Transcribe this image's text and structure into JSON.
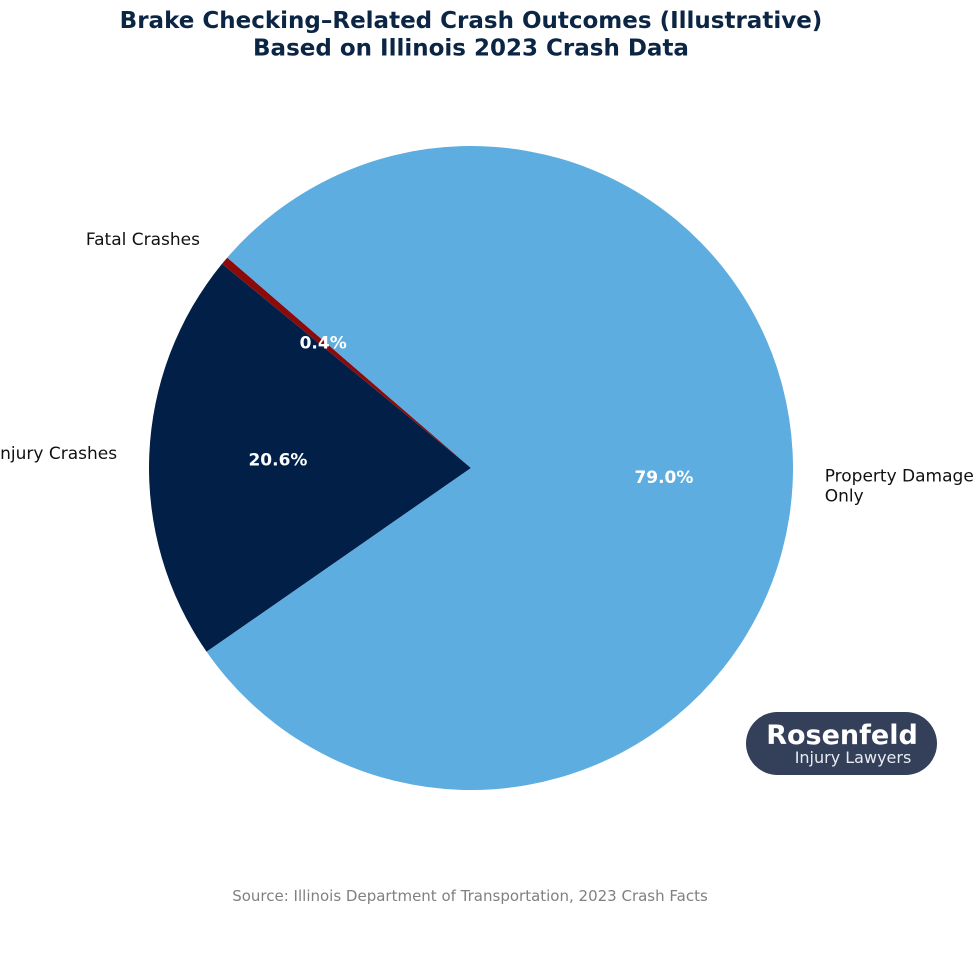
{
  "chart_data": {
    "type": "pie",
    "title": "Brake Checking–Related Crash Outcomes (Illustrative)\nBased on Illinois 2023 Crash Data",
    "categories": [
      "Fatal Crashes",
      "Injury Crashes",
      "Property Damage\nOnly"
    ],
    "values": [
      0.4,
      20.6,
      79.0
    ],
    "value_labels": [
      "0.4%",
      "20.6%",
      "79.0%"
    ],
    "colors": [
      "#8b0a0a",
      "#022047",
      "#5dade0"
    ],
    "start_angle": 139.2,
    "source": "Source: Illinois Department of Transportation, 2023 Crash Facts"
  },
  "logo": {
    "name": "Rosenfeld",
    "tagline": "Injury Lawyers"
  }
}
